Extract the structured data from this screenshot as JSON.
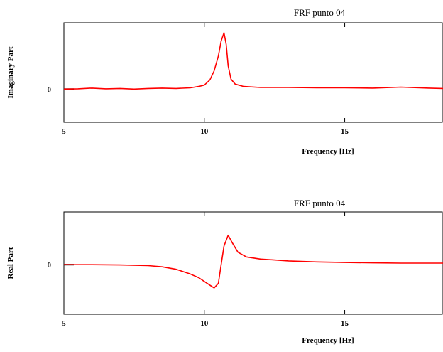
{
  "chart_data": [
    {
      "type": "line",
      "title": "FRF punto 04",
      "xlabel": "Frequency [Hz]",
      "ylabel": "Imaginary Part",
      "xlim": [
        5,
        18.5
      ],
      "ylim": [
        -1.0,
        2.0
      ],
      "xticks": [
        5,
        10,
        15
      ],
      "yticks": [
        0
      ],
      "grid": false,
      "line_color": "#ff0000",
      "series": [
        {
          "x": [
            5,
            5.5,
            6,
            6.5,
            7,
            7.5,
            8,
            8.5,
            9,
            9.5,
            9.8,
            10.0,
            10.2,
            10.35,
            10.5,
            10.6,
            10.7,
            10.78,
            10.85,
            10.95,
            11.1,
            11.4,
            12,
            13,
            14,
            15,
            16,
            17,
            18,
            18.5
          ],
          "y": [
            0.0,
            0.01,
            0.03,
            0.01,
            0.02,
            0.0,
            0.02,
            0.03,
            0.02,
            0.04,
            0.08,
            0.12,
            0.28,
            0.55,
            1.0,
            1.45,
            1.7,
            1.35,
            0.7,
            0.3,
            0.15,
            0.08,
            0.05,
            0.05,
            0.04,
            0.04,
            0.03,
            0.06,
            0.03,
            0.02
          ]
        }
      ]
    },
    {
      "type": "line",
      "title": "FRF punto 04",
      "xlabel": "Frequency [Hz]",
      "ylabel": "Real Part",
      "xlim": [
        5,
        18.5
      ],
      "ylim": [
        -1.6,
        1.7
      ],
      "xticks": [
        5,
        10,
        15
      ],
      "yticks": [
        0
      ],
      "grid": false,
      "line_color": "#ff0000",
      "series": [
        {
          "x": [
            5,
            6,
            7,
            8,
            8.5,
            9,
            9.5,
            9.8,
            10.1,
            10.35,
            10.5,
            10.6,
            10.7,
            10.85,
            11.0,
            11.2,
            11.5,
            12,
            13,
            14,
            15,
            16,
            17,
            18,
            18.5
          ],
          "y": [
            0.0,
            0.0,
            -0.01,
            -0.03,
            -0.07,
            -0.15,
            -0.3,
            -0.42,
            -0.6,
            -0.75,
            -0.6,
            0.0,
            0.6,
            0.95,
            0.7,
            0.4,
            0.25,
            0.18,
            0.12,
            0.09,
            0.07,
            0.06,
            0.05,
            0.05,
            0.05
          ]
        }
      ]
    }
  ]
}
